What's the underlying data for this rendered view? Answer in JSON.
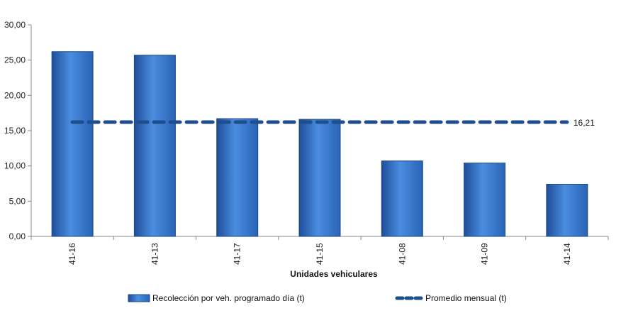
{
  "chart_data": {
    "type": "bar",
    "categories": [
      "41-16",
      "41-13",
      "41-17",
      "41-15",
      "41-08",
      "41-09",
      "41-14"
    ],
    "series": [
      {
        "name": "Recolección por veh. programado día (t)",
        "type": "bar",
        "values": [
          26.2,
          25.7,
          16.7,
          16.6,
          10.7,
          10.4,
          7.4
        ],
        "color": "#3f7fd0"
      },
      {
        "name": "Promedio mensual (t)",
        "type": "line-dashed",
        "values": [
          16.21,
          16.21,
          16.21,
          16.21,
          16.21,
          16.21,
          16.21
        ],
        "color": "#1f4e8c"
      }
    ],
    "average_label": "16,21",
    "xlabel": "Unidades vehiculares",
    "ylabel": "",
    "ylim": [
      0,
      30
    ],
    "yticks": [
      "0,00",
      "5,00",
      "10,00",
      "15,00",
      "20,00",
      "25,00",
      "30,00"
    ],
    "ytick_values": [
      0,
      5,
      10,
      15,
      20,
      25,
      30
    ],
    "grid": false,
    "legend_position": "bottom"
  }
}
